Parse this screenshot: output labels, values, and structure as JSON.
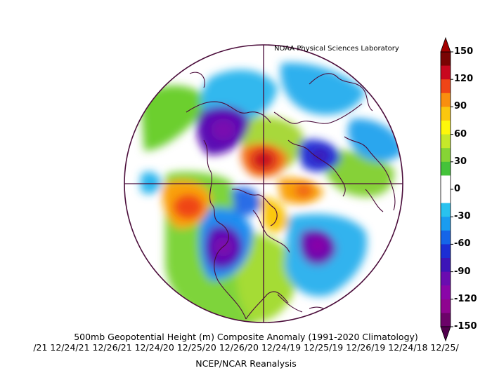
{
  "credit": "NOAA Physical Sciences Laboratory",
  "title": "500mb Geopotential Height (m) Composite Anomaly (1991-2020 Climatology)",
  "dates": "/21 12/24/21 12/26/21 12/24/20 12/25/20 12/26/20 12/24/19 12/25/19 12/26/19 12/24/18 12/25/",
  "source": "NCEP/NCAR Reanalysis",
  "colorbar": {
    "tick_labels": [
      "150",
      "120",
      "90",
      "60",
      "30",
      "0",
      "-30",
      "-60",
      "-90",
      "-120",
      "-150"
    ],
    "colors": [
      "#7a0403",
      "#c8081f",
      "#ef4516",
      "#f98f0f",
      "#fbc70f",
      "#fef70b",
      "#c6e82a",
      "#86d435",
      "#44c33a",
      "#ffffff",
      "#ffffff",
      "#29c2ef",
      "#1a9cf0",
      "#1565e8",
      "#1c2ed4",
      "#3c15b8",
      "#6a0cb0",
      "#8a05a8",
      "#8f0490",
      "#6c0369"
    ],
    "top_color": "#a40000",
    "bottom_color": "#51004d"
  },
  "map": {
    "projection": "north-polar-stereographic",
    "outline_color": "#4a0c3a"
  }
}
